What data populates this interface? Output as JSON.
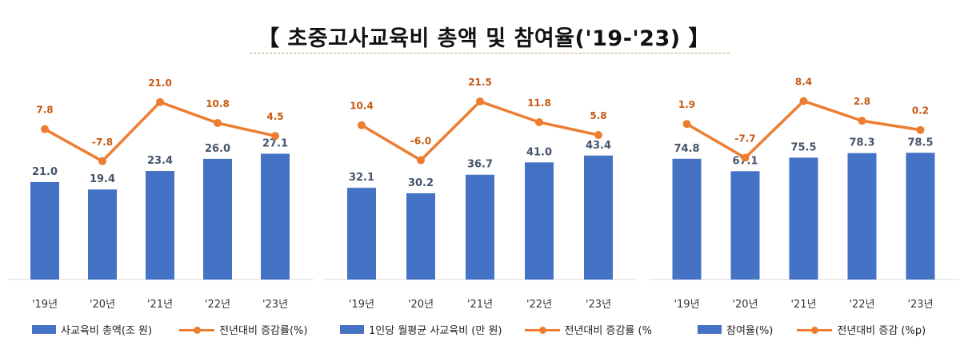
{
  "page": {
    "title": "【  초중고사교육비  총액  및  참여율('19-'23)  】"
  },
  "colors": {
    "bar": "#4472c4",
    "line": "#ed7d31",
    "label": "#44546a",
    "line_label": "#c55a11",
    "axis": "#d9d9d9",
    "tick": "#333333"
  },
  "chart_data": [
    {
      "type": "bar",
      "categories": [
        "'19년",
        "'20년",
        "'21년",
        "'22년",
        "'23년"
      ],
      "series": [
        {
          "name": "사교육비 총액(조 원)",
          "type": "bar",
          "values": [
            21.0,
            19.4,
            23.4,
            26.0,
            27.1
          ],
          "labels": [
            "21.0",
            "19.4",
            "23.4",
            "26.0",
            "27.1"
          ]
        },
        {
          "name": "전년대비 증감률(%)",
          "type": "line",
          "values": [
            7.8,
            -7.8,
            21.0,
            10.8,
            4.5
          ],
          "labels": [
            "7.8",
            "-7.8",
            "21.0",
            "10.8",
            "4.5"
          ]
        }
      ],
      "legend": [
        "사교육비 총액(조 원)",
        "전년대비 증감률(%)"
      ],
      "legend_position": "bottom",
      "grid": false
    },
    {
      "type": "bar",
      "categories": [
        "'19년",
        "'20년",
        "'21년",
        "'22년",
        "'23년"
      ],
      "series": [
        {
          "name": "1인당 월평균 사교육비 (만 원)",
          "type": "bar",
          "values": [
            32.1,
            30.2,
            36.7,
            41.0,
            43.4
          ],
          "labels": [
            "32.1",
            "30.2",
            "36.7",
            "41.0",
            "43.4"
          ]
        },
        {
          "name": "전년대비 증감률 (%",
          "type": "line",
          "values": [
            10.4,
            -6.0,
            21.5,
            11.8,
            5.8
          ],
          "labels": [
            "10.4",
            "-6.0",
            "21.5",
            "11.8",
            "5.8"
          ]
        }
      ],
      "legend": [
        "1인당 월평균 사교육비 (만 원)",
        "전년대비 증감률 (%"
      ],
      "legend_position": "bottom",
      "grid": false
    },
    {
      "type": "bar",
      "categories": [
        "'19년",
        "'20년",
        "'21년",
        "'22년",
        "'23년"
      ],
      "series": [
        {
          "name": "참여율(%)",
          "type": "bar",
          "values": [
            74.8,
            67.1,
            75.5,
            78.3,
            78.5
          ],
          "labels": [
            "74.8",
            "67.1",
            "75.5",
            "78.3",
            "78.5"
          ]
        },
        {
          "name": "전년대비 증감 (%p)",
          "type": "line",
          "values": [
            1.9,
            -7.7,
            8.4,
            2.8,
            0.2
          ],
          "labels": [
            "1.9",
            "-7.7",
            "8.4",
            "2.8",
            "0.2"
          ]
        }
      ],
      "legend": [
        "참여율(%)",
        "전년대비 증감 (%p)"
      ],
      "legend_position": "bottom",
      "grid": false
    }
  ]
}
